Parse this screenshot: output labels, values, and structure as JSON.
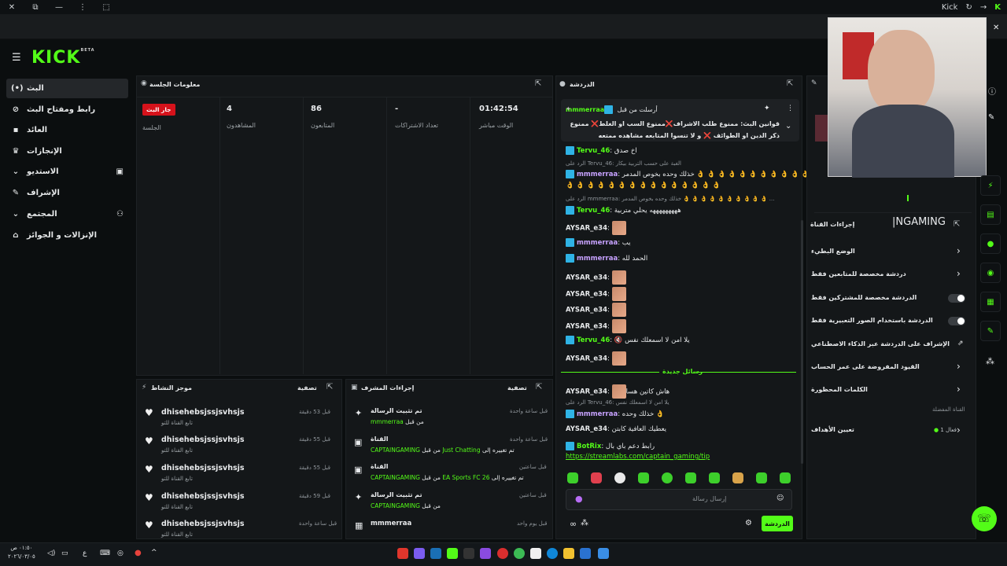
{
  "window": {
    "app_title": "Kick",
    "controls": [
      "✕",
      "⧉",
      "—",
      "⋮"
    ]
  },
  "brand": {
    "logo": "KICK",
    "beta": "BETA",
    "accent": "#53fc18"
  },
  "sidebar": {
    "items": [
      {
        "label": "البث",
        "icon": "broadcast-icon",
        "glyph": "(•)"
      },
      {
        "label": "رابط ومفتاح البث",
        "icon": "link-icon",
        "glyph": "⊘"
      },
      {
        "label": "العائد",
        "icon": "money-icon",
        "glyph": "▪"
      },
      {
        "label": "الإنجازات",
        "icon": "trophy-icon",
        "glyph": "♛"
      },
      {
        "label": "الاستديو",
        "icon": "chevron-down-icon",
        "glyph": "⌄"
      },
      {
        "label": "الإشراف",
        "icon": "wrench-icon",
        "glyph": "✎"
      },
      {
        "label": "المجتمع",
        "icon": "chevron-down-icon",
        "glyph": "⌄"
      },
      {
        "label": "الإنزالات و الجوائز",
        "icon": "gift-icon",
        "glyph": "⌂"
      }
    ]
  },
  "session": {
    "title": "معلومات الجلسة",
    "live_badge": "جار البث",
    "live_label": "الجلسة",
    "stats": [
      {
        "value": "4",
        "label": "المشاهدون"
      },
      {
        "value": "86",
        "label": "المتابعون"
      },
      {
        "value": "-",
        "label": "تعداد الاشتراكات"
      },
      {
        "value": "01:42:54",
        "label": "الوقت مباشر"
      }
    ]
  },
  "activity": {
    "title": "موجز النشاط",
    "filter": "تصفية",
    "rows": [
      {
        "name": "dhisehebsjssjsvhsjs",
        "sub": "تابع القناة للتو",
        "time": "قبل 53 دقيقة"
      },
      {
        "name": "dhisehebsjssjsvhsjs",
        "sub": "تابع القناة للتو",
        "time": "قبل 55 دقيقة"
      },
      {
        "name": "dhisehebsjssjsvhsjs",
        "sub": "تابع القناة للتو",
        "time": "قبل 55 دقيقة"
      },
      {
        "name": "dhisehebsjssjsvhsjs",
        "sub": "تابع القناة للتو",
        "time": "قبل 59 دقيقة"
      },
      {
        "name": "dhisehebsjssjsvhsjs",
        "sub": "تابع القناة للتو",
        "time": "قبل ساعة واحدة"
      }
    ]
  },
  "modactions": {
    "title": "إجراءات المشرف",
    "filter": "تصفية",
    "rows": [
      {
        "action": "تم تثبيت الرسالة",
        "detail_prefix": "من قبل",
        "detail_user": "mmmerraa",
        "time": "قبل ساعة واحدة",
        "icon": "pin-icon",
        "glyph": "✦"
      },
      {
        "action": "القناة",
        "detail_prefix": "تم تغييره إلى",
        "detail_user": "Just Chatting",
        "detail_mid": "من قبل",
        "detail_user2": "CAPTAINGAMING",
        "time": "قبل ساعة واحدة",
        "icon": "video-icon",
        "glyph": "▶"
      },
      {
        "action": "القناة",
        "detail_prefix": "تم تغييره إلى",
        "detail_user": "EA Sports FC 26",
        "detail_mid": "من قبل",
        "detail_user2": "CAPTAINGAMING",
        "time": "قبل ساعتين",
        "icon": "video-icon",
        "glyph": "▶"
      },
      {
        "action": "تم تثبيت الرسالة",
        "detail_prefix": "من قبل",
        "detail_user": "CAPTAINGAMING",
        "time": "قبل ساعتين",
        "icon": "pin-icon",
        "glyph": "✦"
      },
      {
        "action": "mmmerraa",
        "detail_prefix": "",
        "detail_user": "",
        "time": "قبل يوم واحد",
        "icon": "trash-icon",
        "glyph": "▦"
      }
    ]
  },
  "chat": {
    "title": "الدردشة",
    "pinned_by": "أرسلت من قبل",
    "pinned_user": "mmmerraa",
    "pinned_text": "قوانين البث: ممنوع طلب الاشراف❌ممنوع السب او الغلط❌ ممنوع ذكر الدين او الطوائف ❌ و لا تنسوا المتابعه مشاهده ممتعه",
    "new_messages": "رسائل جديدة",
    "messages": [
      {
        "user": "Tervu_46",
        "color": "g",
        "text": "اخ صدق",
        "badge": true,
        "emote": false
      },
      {
        "reply": "الرد على Tervu_46: الغبة على حسب التربية بيكار"
      },
      {
        "user": "mmmerraa",
        "color": "p",
        "text": "خذلك وحده بخوص المدمر 👌 👌 👌 👌 👌 👌 👌 👌 👌 👌 👌 👌 👌 👌 👌 👌",
        "badge": true,
        "emote": false
      },
      {
        "text": "👌 👌 👌 👌 👌 👌 👌 👌 👌 👌 👌 👌 👌 👌 👌"
      },
      {
        "reply": "الرد على mmmerraa: خذلك وحده بخوص المدمر 👌 👌 👌 👌 👌 👌 👌 👌 👌 👌 ..."
      },
      {
        "user": "Tervu_46",
        "color": "g",
        "text": "هههههههههه يحلي متربية",
        "badge": true,
        "emote": false
      },
      {
        "user": "AYSAR_e34",
        "color": "w",
        "text": "",
        "badge": false,
        "emote": true
      },
      {
        "user": "mmmerraa",
        "color": "p",
        "text": "يب",
        "badge": true,
        "emote": false
      },
      {
        "user": "mmmerraa",
        "color": "p",
        "text": "الحمد لله",
        "badge": true,
        "emote": false
      },
      {
        "user": "AYSAR_e34",
        "color": "w",
        "text": "",
        "badge": false,
        "emote": true
      },
      {
        "user": "AYSAR_e34",
        "color": "w",
        "text": "",
        "badge": false,
        "emote": true
      },
      {
        "user": "AYSAR_e34",
        "color": "w",
        "text": "",
        "badge": false,
        "emote": true
      },
      {
        "user": "AYSAR_e34",
        "color": "w",
        "text": "",
        "badge": false,
        "emote": true
      },
      {
        "user": "Tervu_46",
        "color": "g",
        "text": "🔇 يلا امن لا اسمعلك نفس",
        "badge": true,
        "emote": false
      },
      {
        "user": "AYSAR_e34",
        "color": "w",
        "text": "",
        "badge": false,
        "emote": true
      },
      {
        "user": "AYSAR_e34",
        "color": "w",
        "text": "هاش كاتين هسا",
        "badge": false,
        "emote": true
      },
      {
        "reply": "الرد على Tervu_46: يلا امن لا اسمعلك نفس"
      },
      {
        "user": "mmmerraa",
        "color": "p",
        "text": "خذلك وحده 👌",
        "badge": true,
        "emote": false
      },
      {
        "user": "AYSAR_e34",
        "color": "w",
        "text": "يعطيك العافية كابتن",
        "badge": false,
        "emote": false
      },
      {
        "user": "BotRix",
        "color": "g",
        "text": "رابط دعم باي بال",
        "badge": true,
        "emote": false
      },
      {
        "link": "https://streamlabs.com/captain_gaming/tip"
      }
    ],
    "input_placeholder": "إرسال رسالة",
    "send_label": "الدردشة"
  },
  "channel": {
    "title": "إجراءات القناة",
    "name_fragment": "NGAMING",
    "rows": [
      {
        "label": "الوضع البطيء",
        "control": "chevron"
      },
      {
        "label": "دردشة مخصصة للمتابعين فقط",
        "control": "chevron"
      },
      {
        "label": "الدردشة مخصصة للمشتركين فقط",
        "control": "toggle"
      },
      {
        "label": "الدردشة باستخدام الصور التعبيرية فقط",
        "control": "toggle"
      },
      {
        "label": "الإشراف على الدردشة عبر الذكاء الاصطناعي",
        "control": "external"
      },
      {
        "label": "القيود المفروضة على عمر الحساب",
        "control": "chevron"
      },
      {
        "label": "الكلمات المحظورة",
        "control": "chevron"
      }
    ],
    "favorites": "القناة المفضلة",
    "goals_label": "تعيين الأهداف",
    "goals_status": "فعال 1"
  },
  "taskbar": {
    "time": "٠١:٥٠ ص",
    "date": "٢٠٢٦/٠٣/٠٥",
    "lang": "ع"
  }
}
